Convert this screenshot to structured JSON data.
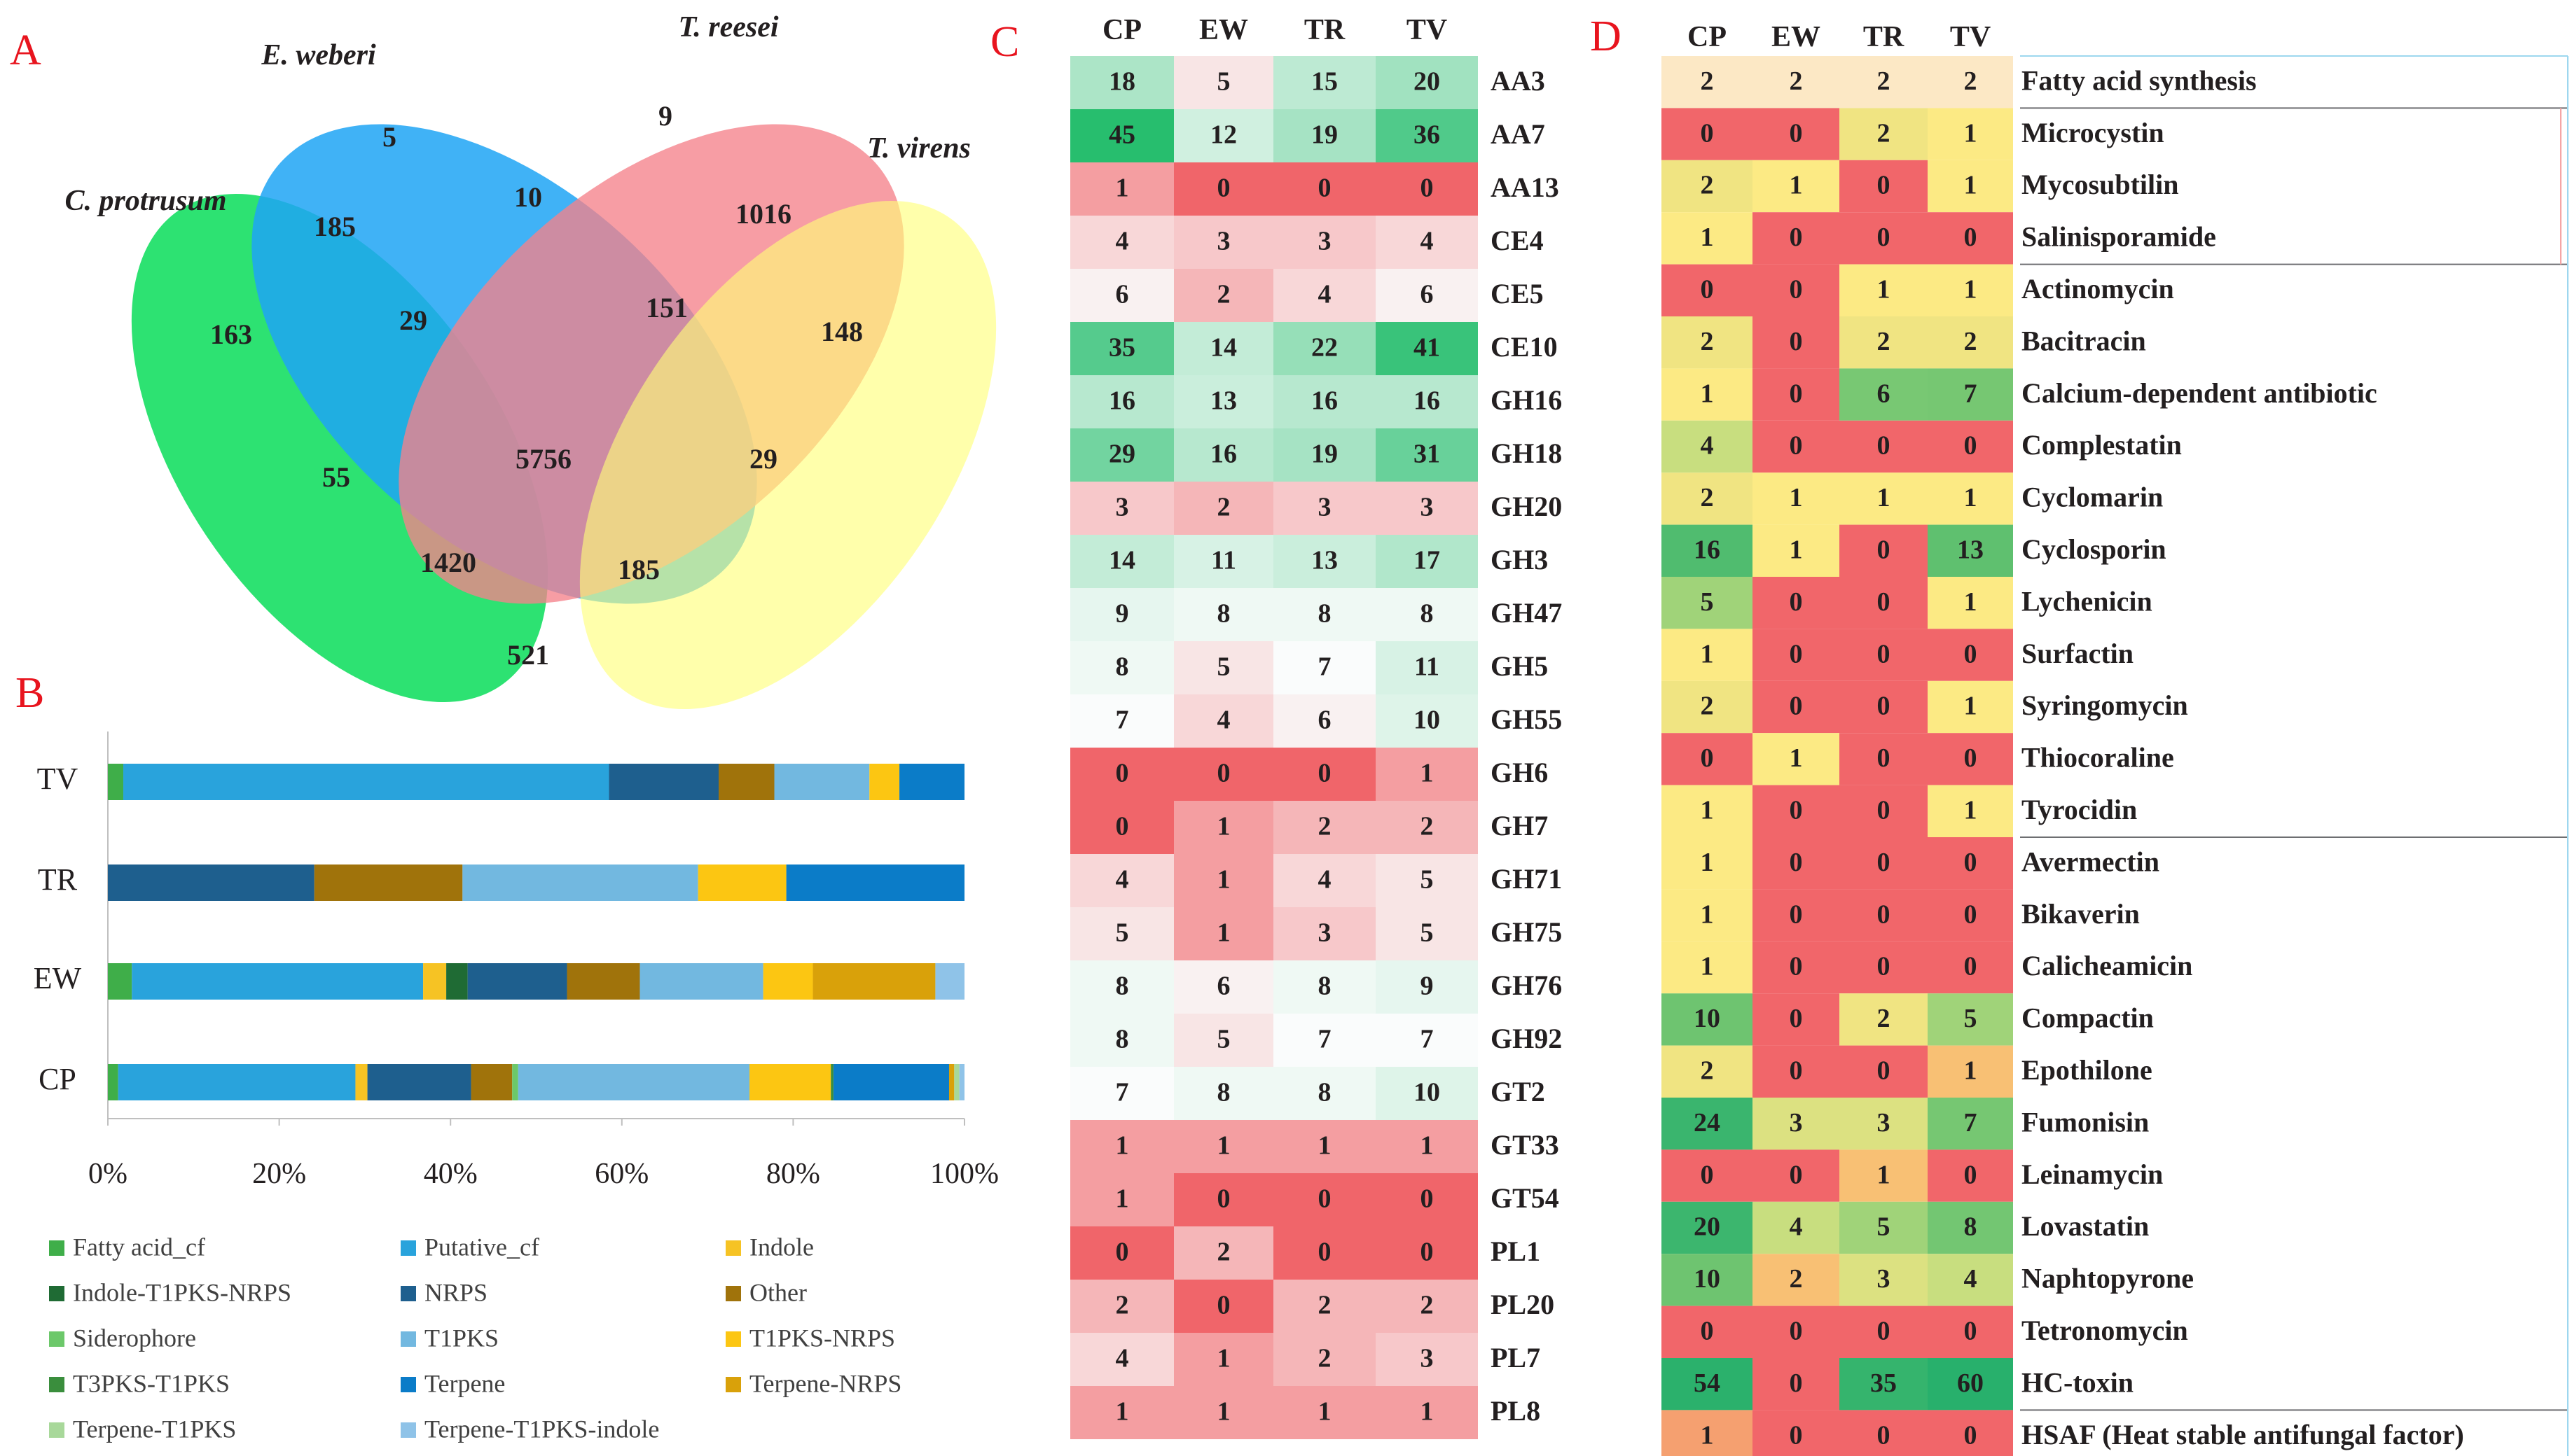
{
  "panel_labels": {
    "a": "A",
    "b": "B",
    "c": "C",
    "d": "D"
  },
  "colors": {
    "panel_label": "#e8141e",
    "text": "#231f20"
  },
  "chart_data": [
    {
      "type": "venn",
      "panel": "A",
      "sets": [
        {
          "name": "C. protrusum",
          "color": "#22e06a"
        },
        {
          "name": "E. weberi",
          "color": "#1ea5f5"
        },
        {
          "name": "T. reesei",
          "color": "#f5828a"
        },
        {
          "name": "T. virens",
          "color": "#ffff78"
        }
      ],
      "regions": [
        {
          "sets": [
            "E. weberi"
          ],
          "value": 5
        },
        {
          "sets": [
            "T. reesei"
          ],
          "value": 9
        },
        {
          "sets": [
            "E. weberi",
            "T. reesei"
          ],
          "value": 10
        },
        {
          "sets": [
            "C. protrusum",
            "E. weberi"
          ],
          "value": 185
        },
        {
          "sets": [
            "T. reesei",
            "T. virens"
          ],
          "value": 1016
        },
        {
          "sets": [
            "C. protrusum"
          ],
          "value": 163
        },
        {
          "sets": [
            "C. protrusum",
            "E. weberi",
            "T. reesei"
          ],
          "value": 29
        },
        {
          "sets": [
            "E. weberi",
            "T. reesei",
            "T. virens"
          ],
          "value": 151
        },
        {
          "sets": [
            "T. virens"
          ],
          "value": 148
        },
        {
          "sets": [
            "C. protrusum",
            "T. reesei"
          ],
          "value": 55
        },
        {
          "sets": [
            "C. protrusum",
            "E. weberi",
            "T. reesei",
            "T. virens"
          ],
          "value": 5756
        },
        {
          "sets": [
            "E. weberi",
            "T. virens"
          ],
          "value": 29
        },
        {
          "sets": [
            "C. protrusum",
            "T. reesei",
            "T. virens"
          ],
          "value": 1420
        },
        {
          "sets": [
            "C. protrusum",
            "E. weberi",
            "T. virens"
          ],
          "value": 185
        },
        {
          "sets": [
            "C. protrusum",
            "T. virens"
          ],
          "value": 521
        }
      ]
    },
    {
      "type": "bar",
      "orientation": "horizontal",
      "stacked": true,
      "panel": "B",
      "categories": [
        "TV",
        "TR",
        "EW",
        "CP"
      ],
      "x_ticks": [
        "0%",
        "20%",
        "40%",
        "60%",
        "80%",
        "100%"
      ],
      "xlim": [
        0,
        100
      ],
      "series": [
        {
          "name": "Fatty acid_cf",
          "color": "#3fae49",
          "values": [
            1.8,
            0,
            2.8,
            1.2
          ]
        },
        {
          "name": "Putative_cf",
          "color": "#29a3dc",
          "values": [
            56.7,
            0,
            34.0,
            27.7
          ]
        },
        {
          "name": "Indole",
          "color": "#f6c324",
          "values": [
            0,
            0,
            2.7,
            1.4
          ]
        },
        {
          "name": "Indole-T1PKS-NRPS",
          "color": "#1f6b34",
          "values": [
            0,
            0,
            2.5,
            0
          ]
        },
        {
          "name": "NRPS",
          "color": "#1e5f8e",
          "values": [
            12.8,
            24.1,
            11.6,
            12.1
          ]
        },
        {
          "name": "Other",
          "color": "#a0730b",
          "values": [
            6.5,
            17.3,
            8.5,
            4.8
          ]
        },
        {
          "name": "Siderophore",
          "color": "#6cc86a",
          "values": [
            0,
            0,
            0,
            0.7
          ]
        },
        {
          "name": "T1PKS",
          "color": "#72b8e0",
          "values": [
            11.1,
            27.5,
            14.4,
            27.0
          ]
        },
        {
          "name": "T1PKS-NRPS",
          "color": "#fcc612",
          "values": [
            3.5,
            10.3,
            5.8,
            9.5
          ]
        },
        {
          "name": "T3PKS-T1PKS",
          "color": "#3a8e3d",
          "values": [
            0,
            0,
            0,
            0.3
          ]
        },
        {
          "name": "Terpene",
          "color": "#0b7cc8",
          "values": [
            7.6,
            20.8,
            0,
            13.5
          ]
        },
        {
          "name": "Terpene-NRPS",
          "color": "#d9a10a",
          "values": [
            0,
            0,
            14.3,
            0.6
          ]
        },
        {
          "name": "Terpene-T1PKS",
          "color": "#a8d89a",
          "values": [
            0,
            0,
            0,
            0.6
          ]
        },
        {
          "name": "Terpene-T1PKS-indole",
          "color": "#8fc3e8",
          "values": [
            0,
            0,
            3.4,
            0.6
          ]
        }
      ]
    },
    {
      "type": "heatmap",
      "panel": "C",
      "columns": [
        "CP",
        "EW",
        "TR",
        "TV"
      ],
      "rows": [
        {
          "label": "AA3",
          "values": [
            18,
            5,
            15,
            20
          ]
        },
        {
          "label": "AA7",
          "values": [
            45,
            12,
            19,
            36
          ]
        },
        {
          "label": "AA13",
          "values": [
            1,
            0,
            0,
            0
          ]
        },
        {
          "label": "CE4",
          "values": [
            4,
            3,
            3,
            4
          ]
        },
        {
          "label": "CE5",
          "values": [
            6,
            2,
            4,
            6
          ]
        },
        {
          "label": "CE10",
          "values": [
            35,
            14,
            22,
            41
          ]
        },
        {
          "label": "GH16",
          "values": [
            16,
            13,
            16,
            16
          ]
        },
        {
          "label": "GH18",
          "values": [
            29,
            16,
            19,
            31
          ]
        },
        {
          "label": "GH20",
          "values": [
            3,
            2,
            3,
            3
          ]
        },
        {
          "label": "GH3",
          "values": [
            14,
            11,
            13,
            17
          ]
        },
        {
          "label": "GH47",
          "values": [
            9,
            8,
            8,
            8
          ]
        },
        {
          "label": "GH5",
          "values": [
            8,
            5,
            7,
            11
          ]
        },
        {
          "label": "GH55",
          "values": [
            7,
            4,
            6,
            10
          ]
        },
        {
          "label": "GH6",
          "values": [
            0,
            0,
            0,
            1
          ]
        },
        {
          "label": "GH7",
          "values": [
            0,
            1,
            2,
            2
          ]
        },
        {
          "label": "GH71",
          "values": [
            4,
            1,
            4,
            5
          ]
        },
        {
          "label": "GH75",
          "values": [
            5,
            1,
            3,
            5
          ]
        },
        {
          "label": "GH76",
          "values": [
            8,
            6,
            8,
            9
          ]
        },
        {
          "label": "GH92",
          "values": [
            8,
            5,
            7,
            7
          ]
        },
        {
          "label": "GT2",
          "values": [
            7,
            8,
            8,
            10
          ]
        },
        {
          "label": "GT33",
          "values": [
            1,
            1,
            1,
            1
          ]
        },
        {
          "label": "GT54",
          "values": [
            1,
            0,
            0,
            0
          ]
        },
        {
          "label": "PL1",
          "values": [
            0,
            2,
            0,
            0
          ]
        },
        {
          "label": "PL20",
          "values": [
            2,
            0,
            2,
            2
          ]
        },
        {
          "label": "PL7",
          "values": [
            4,
            1,
            2,
            3
          ]
        },
        {
          "label": "PL8",
          "values": [
            1,
            1,
            1,
            1
          ]
        }
      ]
    },
    {
      "type": "heatmap",
      "panel": "D",
      "columns": [
        "CP",
        "EW",
        "TR",
        "TV"
      ],
      "rows": [
        {
          "label": "Fatty acid synthesis",
          "values": [
            2,
            2,
            2,
            2
          ]
        },
        {
          "label": "Microcystin",
          "values": [
            0,
            0,
            2,
            1
          ]
        },
        {
          "label": "Mycosubtilin",
          "values": [
            2,
            1,
            0,
            1
          ]
        },
        {
          "label": "Salinisporamide",
          "values": [
            1,
            0,
            0,
            0
          ]
        },
        {
          "label": "Actinomycin",
          "values": [
            0,
            0,
            1,
            1
          ]
        },
        {
          "label": "Bacitracin",
          "values": [
            2,
            0,
            2,
            2
          ]
        },
        {
          "label": "Calcium-dependent antibiotic",
          "values": [
            1,
            0,
            6,
            7
          ]
        },
        {
          "label": "Complestatin",
          "values": [
            4,
            0,
            0,
            0
          ]
        },
        {
          "label": "Cyclomarin",
          "values": [
            2,
            1,
            1,
            1
          ]
        },
        {
          "label": "Cyclosporin",
          "values": [
            16,
            1,
            0,
            13
          ]
        },
        {
          "label": "Lychenicin",
          "values": [
            5,
            0,
            0,
            1
          ]
        },
        {
          "label": "Surfactin",
          "values": [
            1,
            0,
            0,
            0
          ]
        },
        {
          "label": "Syringomycin",
          "values": [
            2,
            0,
            0,
            1
          ]
        },
        {
          "label": "Thiocoraline",
          "values": [
            0,
            1,
            0,
            0
          ]
        },
        {
          "label": "Tyrocidin",
          "values": [
            1,
            0,
            0,
            1
          ]
        },
        {
          "label": "Avermectin",
          "values": [
            1,
            0,
            0,
            0
          ]
        },
        {
          "label": "Bikaverin",
          "values": [
            1,
            0,
            0,
            0
          ]
        },
        {
          "label": "Calicheamicin",
          "values": [
            1,
            0,
            0,
            0
          ]
        },
        {
          "label": "Compactin",
          "values": [
            10,
            0,
            2,
            5
          ]
        },
        {
          "label": "Epothilone",
          "values": [
            2,
            0,
            0,
            1
          ]
        },
        {
          "label": "Fumonisin",
          "values": [
            24,
            3,
            3,
            7
          ]
        },
        {
          "label": "Leinamycin",
          "values": [
            0,
            0,
            1,
            0
          ]
        },
        {
          "label": "Lovastatin",
          "values": [
            20,
            4,
            5,
            8
          ]
        },
        {
          "label": "Naphtopyrone",
          "values": [
            10,
            2,
            3,
            4
          ]
        },
        {
          "label": "Tetronomycin",
          "values": [
            0,
            0,
            0,
            0
          ]
        },
        {
          "label": "HC-toxin",
          "values": [
            54,
            0,
            35,
            60
          ]
        },
        {
          "label": "HSAF (Heat stable antifungal factor)",
          "values": [
            1,
            0,
            0,
            0
          ]
        }
      ]
    }
  ]
}
